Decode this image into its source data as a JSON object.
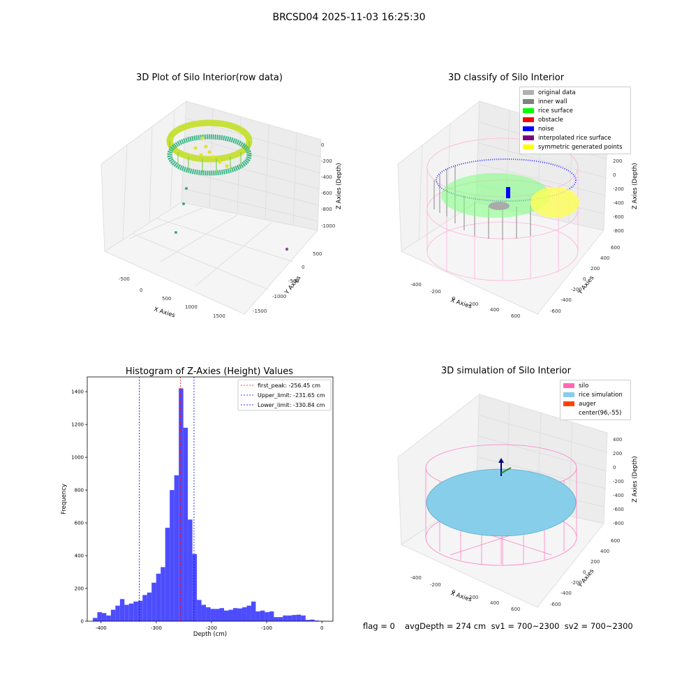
{
  "figure_title": "BRCSD04 2025-11-03 16:25:30",
  "panels": {
    "raw": {
      "title": "3D Plot of Silo Interior(row data)",
      "xlabel": "X Axies",
      "ylabel": "Y Axies",
      "zlabel": "Z Axies (Depth)",
      "x_ticks": [
        "-500",
        "0",
        "500",
        "1000",
        "1500"
      ],
      "y_ticks": [
        "500",
        "0",
        "-500",
        "-1000",
        "-1500"
      ],
      "z_ticks": [
        "0",
        "-200",
        "-400",
        "-600",
        "-800",
        "-1000"
      ]
    },
    "classify": {
      "title": "3D classify of Silo Interior",
      "xlabel": "X Axies",
      "ylabel": "Y Axies",
      "zlabel": "Z Axies (Depth)",
      "x_ticks": [
        "-400",
        "-200",
        "0",
        "200",
        "400",
        "600"
      ],
      "y_ticks": [
        "600",
        "400",
        "200",
        "0",
        "-200",
        "-400",
        "-600"
      ],
      "z_ticks": [
        "200",
        "0",
        "-200",
        "-400",
        "-600",
        "-800"
      ],
      "z_top_tick": "0",
      "legend": [
        {
          "label": "original data",
          "color": "#b0b0b0"
        },
        {
          "label": "inner wall",
          "color": "#808080"
        },
        {
          "label": "rice surface",
          "color": "#00ff00"
        },
        {
          "label": "obstacle",
          "color": "#ff0000"
        },
        {
          "label": "noise",
          "color": "#0000ff"
        },
        {
          "label": "interpolated rice surface",
          "color": "#800080"
        },
        {
          "label": "symmetric generated points",
          "color": "#ffff00"
        }
      ]
    },
    "simulation": {
      "title": "3D simulation of Silo Interior",
      "xlabel": "X Axies",
      "ylabel": "Y Axies",
      "zlabel": "Z Axies (Depth)",
      "x_ticks": [
        "-400",
        "-200",
        "0",
        "200",
        "400",
        "600"
      ],
      "y_ticks": [
        "600",
        "400",
        "200",
        "0",
        "-200",
        "-400",
        "-600"
      ],
      "z_ticks": [
        "400",
        "200",
        "0",
        "-200",
        "-400",
        "-600",
        "-800"
      ],
      "legend": [
        {
          "label": "silo",
          "color": "#ff69b4"
        },
        {
          "label": "rice simulation",
          "color": "#87ceeb"
        },
        {
          "label": "auger",
          "color": "#ff4500"
        },
        {
          "label": "center(96,-55)",
          "color": ""
        }
      ]
    }
  },
  "status": {
    "flag": "flag = 0",
    "avg": "avgDepth = 274 cm  sv1 = 700~2300  sv2 = 700~2300"
  },
  "chart_data": {
    "type": "bar",
    "title": "Histogram of Z-Axies (Height) Values",
    "xlabel": "Depth (cm)",
    "ylabel": "Frequency",
    "xlim": [
      -425,
      20
    ],
    "ylim": [
      0,
      1490
    ],
    "x_ticks": [
      -400,
      -300,
      -200,
      -100,
      0
    ],
    "y_ticks": [
      0,
      200,
      400,
      600,
      800,
      1000,
      1200,
      1400
    ],
    "bar_color": "#4d4dff",
    "bin_width": 8.2,
    "bin_starts": [
      -415,
      -406.8,
      -398.6,
      -390.4,
      -382.2,
      -374,
      -365.8,
      -357.6,
      -349.4,
      -341.2,
      -333,
      -324.8,
      -316.6,
      -308.4,
      -300.2,
      -292,
      -283.8,
      -275.6,
      -267.4,
      -259.2,
      -251,
      -242.8,
      -234.6,
      -226.4,
      -218.2,
      -210,
      -201.8,
      -193.6,
      -185.4,
      -177.2,
      -169,
      -160.8,
      -152.6,
      -144.4,
      -136.2,
      -128,
      -119.8,
      -111.6,
      -103.4,
      -95.2,
      -87,
      -78.8,
      -70.6,
      -62.4,
      -54.2,
      -46,
      -37.8,
      -29.6,
      -21.4,
      -13.2,
      -5
    ],
    "values": [
      20,
      55,
      50,
      35,
      70,
      95,
      135,
      100,
      108,
      120,
      125,
      160,
      175,
      235,
      290,
      330,
      570,
      800,
      890,
      1420,
      1180,
      620,
      410,
      130,
      100,
      85,
      75,
      75,
      80,
      65,
      70,
      80,
      78,
      85,
      95,
      120,
      60,
      65,
      55,
      60,
      25,
      25,
      35,
      35,
      38,
      40,
      35,
      8,
      10,
      4,
      2
    ],
    "vlines": [
      {
        "label": "first_peak: -256.45 cm",
        "x": -256.45,
        "color": "#ff0000"
      },
      {
        "label": "Upper_limit: -231.65 cm",
        "x": -231.65,
        "color": "#0000ff"
      },
      {
        "label": "Lower_limit: -330.84 cm",
        "x": -330.84,
        "color": "#0000ff"
      }
    ],
    "grid": false,
    "legend_position": "top-right"
  }
}
